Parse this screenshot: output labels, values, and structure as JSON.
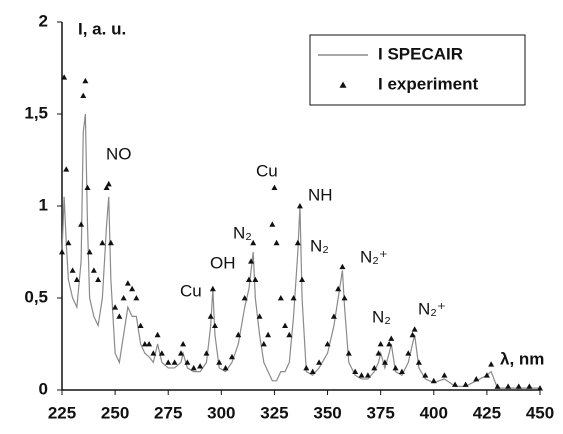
{
  "chart_data": {
    "type": "line_scatter",
    "y_label": "I, a. u.",
    "x_label": "λ, nm",
    "xlim": [
      225,
      450
    ],
    "ylim": [
      0,
      2
    ],
    "xticks": [
      225,
      250,
      275,
      300,
      325,
      350,
      375,
      400,
      425,
      450
    ],
    "yticks": [
      0,
      {
        "value": 0.5,
        "label": "0,5"
      },
      1,
      {
        "value": 1.5,
        "label": "1,5"
      },
      2
    ],
    "legend": "upper right",
    "x": [
      225,
      226,
      227,
      228,
      230,
      232,
      234,
      235,
      236,
      237,
      238,
      240,
      242,
      244,
      246,
      247,
      248,
      250,
      252,
      254,
      256,
      258,
      260,
      262,
      264,
      266,
      268,
      270,
      272,
      275,
      278,
      281,
      282,
      284,
      287,
      290,
      293,
      295,
      296,
      297,
      299,
      302,
      305,
      308,
      311,
      313,
      314,
      315,
      316,
      318,
      320,
      322,
      324,
      325,
      326,
      328,
      330,
      332,
      334,
      336,
      337,
      338,
      340,
      343,
      346,
      350,
      353,
      355,
      357,
      358,
      360,
      363,
      366,
      369,
      372,
      374,
      375,
      377,
      379,
      380,
      382,
      385,
      388,
      390,
      391,
      393,
      396,
      400,
      405,
      410,
      415,
      420,
      425,
      427,
      430,
      435,
      440,
      445,
      450
    ],
    "series": [
      {
        "name": "I SPECAIR",
        "kind": "line",
        "color": "#8a8a8a",
        "values": [
          0.75,
          1.05,
          0.8,
          0.6,
          0.5,
          0.45,
          0.7,
          1.4,
          1.5,
          0.9,
          0.5,
          0.4,
          0.35,
          0.5,
          0.9,
          1.05,
          0.6,
          0.2,
          0.15,
          0.3,
          0.45,
          0.4,
          0.4,
          0.25,
          0.2,
          0.18,
          0.15,
          0.25,
          0.15,
          0.12,
          0.12,
          0.15,
          0.2,
          0.12,
          0.1,
          0.1,
          0.15,
          0.35,
          0.55,
          0.3,
          0.12,
          0.1,
          0.15,
          0.25,
          0.45,
          0.55,
          0.65,
          0.75,
          0.5,
          0.3,
          0.15,
          0.1,
          0.05,
          0.05,
          0.05,
          0.1,
          0.1,
          0.15,
          0.4,
          0.75,
          1.0,
          0.5,
          0.1,
          0.08,
          0.12,
          0.2,
          0.35,
          0.5,
          0.65,
          0.45,
          0.15,
          0.08,
          0.06,
          0.06,
          0.1,
          0.15,
          0.2,
          0.12,
          0.2,
          0.25,
          0.1,
          0.08,
          0.15,
          0.25,
          0.3,
          0.12,
          0.06,
          0.04,
          0.06,
          0.02,
          0.02,
          0.05,
          0.08,
          0.1,
          0.01,
          0.01,
          0.01,
          0.01,
          0.01
        ]
      },
      {
        "name": "I experiment",
        "kind": "scatter",
        "color": "#111111",
        "values": [
          0.75,
          1.7,
          1.2,
          0.8,
          0.65,
          0.6,
          0.9,
          1.6,
          1.68,
          1.1,
          0.75,
          0.65,
          0.6,
          0.8,
          1.1,
          1.12,
          0.8,
          0.45,
          0.4,
          0.5,
          0.58,
          0.55,
          0.5,
          0.35,
          0.25,
          0.25,
          0.2,
          0.3,
          0.2,
          0.15,
          0.15,
          0.2,
          0.25,
          0.15,
          0.12,
          0.13,
          0.2,
          0.4,
          0.55,
          0.35,
          0.15,
          0.12,
          0.18,
          0.3,
          0.5,
          0.6,
          0.7,
          0.8,
          0.6,
          0.4,
          0.25,
          0.3,
          0.9,
          1.1,
          0.8,
          0.5,
          0.35,
          0.3,
          0.5,
          0.8,
          1.0,
          0.6,
          0.12,
          0.1,
          0.15,
          0.25,
          0.4,
          0.55,
          0.67,
          0.5,
          0.2,
          0.1,
          0.08,
          0.08,
          0.12,
          0.2,
          0.25,
          0.15,
          0.25,
          0.28,
          0.12,
          0.1,
          0.2,
          0.3,
          0.33,
          0.15,
          0.08,
          0.05,
          0.08,
          0.03,
          0.03,
          0.06,
          0.08,
          0.14,
          0.02,
          0.02,
          0.02,
          0.02,
          0.01
        ]
      }
    ],
    "annotations": [
      "NO",
      "Cu",
      "OH",
      "N₂",
      "Cu",
      "NH",
      "N₂",
      "N₂⁺",
      "N₂",
      "N₂⁺"
    ]
  }
}
